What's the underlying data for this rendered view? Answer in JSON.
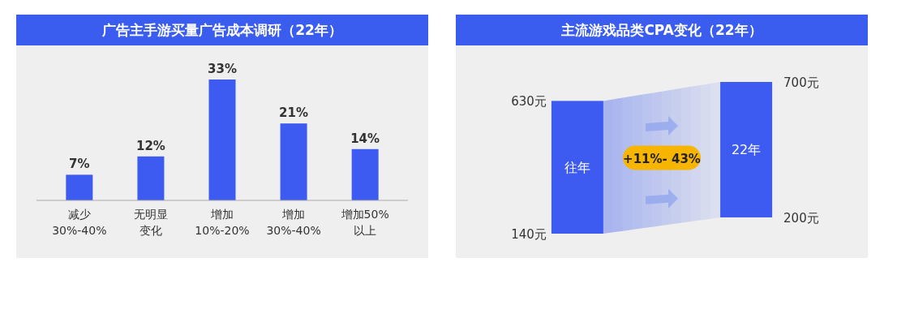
{
  "chart_data": [
    {
      "type": "bar",
      "title": "广告主手游买量广告成本调研（22年）",
      "categories": [
        "减少30%-40%",
        "无明显变化",
        "增加10%-20%",
        "增加30%-40%",
        "增加50%以上"
      ],
      "values": [
        7,
        12,
        33,
        21,
        14
      ],
      "value_labels": [
        "7%",
        "12%",
        "33%",
        "21%",
        "14%"
      ],
      "color": "#3d5bf0"
    },
    {
      "type": "bar",
      "title": "主流游戏品类CPA变化（22年）",
      "categories": [
        "往年",
        "22年"
      ],
      "base": [
        140,
        200
      ],
      "values": [
        490,
        500
      ],
      "color": "#3d5bf0",
      "ylim": [
        140,
        700
      ],
      "yticks": [
        {
          "value": 140,
          "label": "140元"
        },
        {
          "value": 630,
          "label": "630元"
        }
      ],
      "y2lim": [
        140,
        700
      ],
      "y2ticks": [
        {
          "value": 200,
          "label": "200元"
        },
        {
          "value": 700,
          "label": "700元"
        }
      ],
      "annotations": [
        "+11%- 43%"
      ]
    }
  ]
}
